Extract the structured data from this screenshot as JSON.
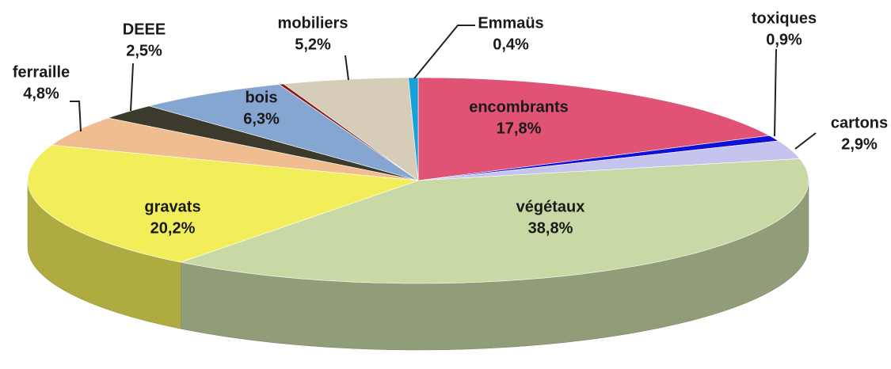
{
  "chart_data": {
    "type": "pie",
    "categories": [
      "encombrants",
      "toxiques",
      "cartons",
      "végétaux",
      "gravats",
      "ferraille",
      "DEEE",
      "bois",
      null,
      "mobiliers",
      "Emmaüs"
    ],
    "values": [
      17.8,
      0.9,
      2.9,
      38.8,
      20.2,
      4.8,
      2.5,
      6.3,
      0.2,
      5.2,
      0.4
    ],
    "value_labels": [
      "17,8%",
      "0,9%",
      "2,9%",
      "38,8%",
      "20,2%",
      "4,8%",
      "2,5%",
      "6,3%",
      null,
      "5,2%",
      "0,4%"
    ],
    "colors": [
      "#e05374",
      "#1010d8",
      "#c4c4ee",
      "#c9d9a6",
      "#f2ee5a",
      "#f0bd90",
      "#3b3a2c",
      "#86a6d2",
      "#8b1a1a",
      "#d6cdb8",
      "#18a0d8"
    ]
  }
}
